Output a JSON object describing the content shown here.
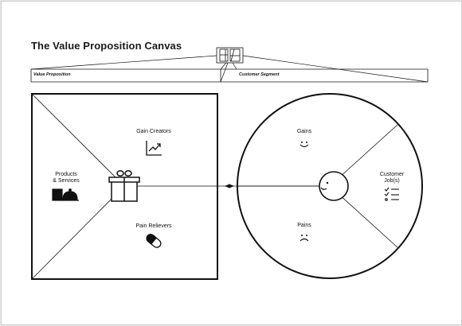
{
  "title": "The Value Proposition Canvas",
  "sections": {
    "value_proposition": "Value Proposition",
    "customer_segment": "Customer Segment"
  },
  "value_map": {
    "gain_creators": "Gain Creators",
    "products_services_line1": "Products",
    "products_services_line2": "& Services",
    "pain_relievers": "Pain Relievers"
  },
  "customer_profile": {
    "gains": "Gains",
    "pains": "Pains",
    "customer_jobs_line1": "Customer",
    "customer_jobs_line2": "Job(s)"
  },
  "icons": {
    "gain_creators": "trending-chart-icon",
    "products_services": "product-box-and-cloche-icon",
    "pain_relievers": "pill-icon",
    "gift": "gift-icon",
    "gains": "smiley-face-icon",
    "pains": "frowny-face-icon",
    "customer_jobs": "checklist-icon",
    "customer_face": "customer-face-icon",
    "header_logo": "canvas-logo-icon"
  },
  "colors": {
    "ink": "#111111",
    "background": "#e6e6e6",
    "paper": "#ffffff"
  }
}
